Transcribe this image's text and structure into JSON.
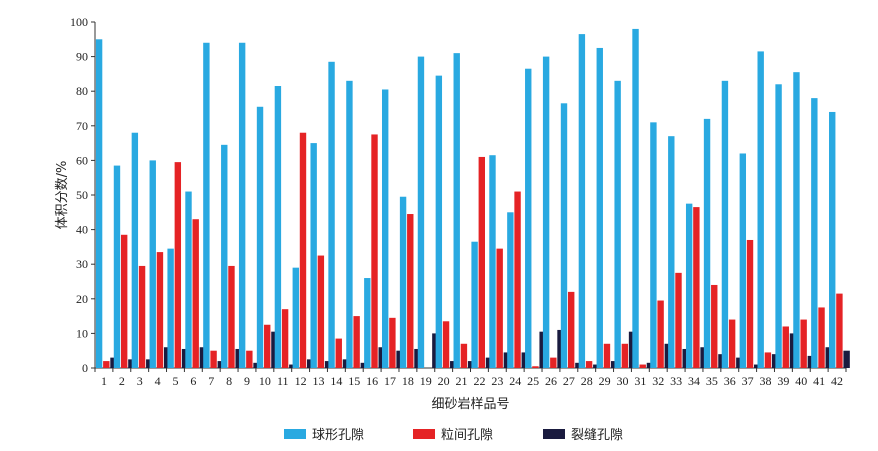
{
  "chart_data": {
    "type": "bar",
    "ylabel": "体积分数/%",
    "xlabel": "细砂岩样品号",
    "ylim": [
      0,
      100
    ],
    "yticks": [
      0,
      10,
      20,
      30,
      40,
      50,
      60,
      70,
      80,
      90,
      100
    ],
    "categories": [
      "1",
      "2",
      "3",
      "4",
      "5",
      "6",
      "7",
      "8",
      "9",
      "10",
      "11",
      "12",
      "13",
      "14",
      "15",
      "16",
      "17",
      "18",
      "19",
      "20",
      "21",
      "22",
      "23",
      "24",
      "25",
      "26",
      "27",
      "28",
      "29",
      "30",
      "31",
      "32",
      "33",
      "34",
      "35",
      "36",
      "37",
      "38",
      "39",
      "40",
      "41",
      "42"
    ],
    "legend_position": "bottom",
    "series": [
      {
        "name": "球形孔隙",
        "color": "#29a9e1",
        "values": [
          95,
          58.5,
          68,
          60,
          34.5,
          51,
          94,
          64.5,
          94,
          75.5,
          81.5,
          29,
          65,
          88.5,
          83,
          26,
          80.5,
          49.5,
          90,
          84.5,
          91,
          36.5,
          61.5,
          45,
          86.5,
          90,
          76.5,
          96.5,
          92.5,
          83,
          98,
          71,
          67,
          47.5,
          72,
          83,
          62,
          91.5,
          82,
          85.5,
          78,
          74
        ]
      },
      {
        "name": "粒间孔隙",
        "color": "#e52325",
        "values": [
          2,
          38.5,
          29.5,
          33.5,
          59.5,
          43,
          5,
          29.5,
          5,
          12.5,
          17,
          68,
          32.5,
          8.5,
          15,
          67.5,
          14.5,
          44.5,
          0,
          13.5,
          7,
          61,
          34.5,
          51,
          0.5,
          3,
          22,
          2,
          7,
          7,
          1,
          19.5,
          27.5,
          46.5,
          24,
          14,
          37,
          4.5,
          12,
          14,
          17.5,
          21.5
        ]
      },
      {
        "name": "裂缝孔隙",
        "color": "#1a1b3f",
        "values": [
          3,
          2.5,
          2.5,
          6,
          5.5,
          6,
          2,
          5.5,
          1.5,
          10.5,
          1,
          2.5,
          2,
          2.5,
          1.5,
          6,
          5,
          5.5,
          10,
          2,
          2,
          3,
          4.5,
          4.5,
          10.5,
          11,
          1.5,
          1,
          2,
          10.5,
          1.5,
          7,
          5.5,
          6,
          4,
          3,
          1,
          4,
          10,
          3.5,
          6,
          5
        ]
      }
    ]
  }
}
